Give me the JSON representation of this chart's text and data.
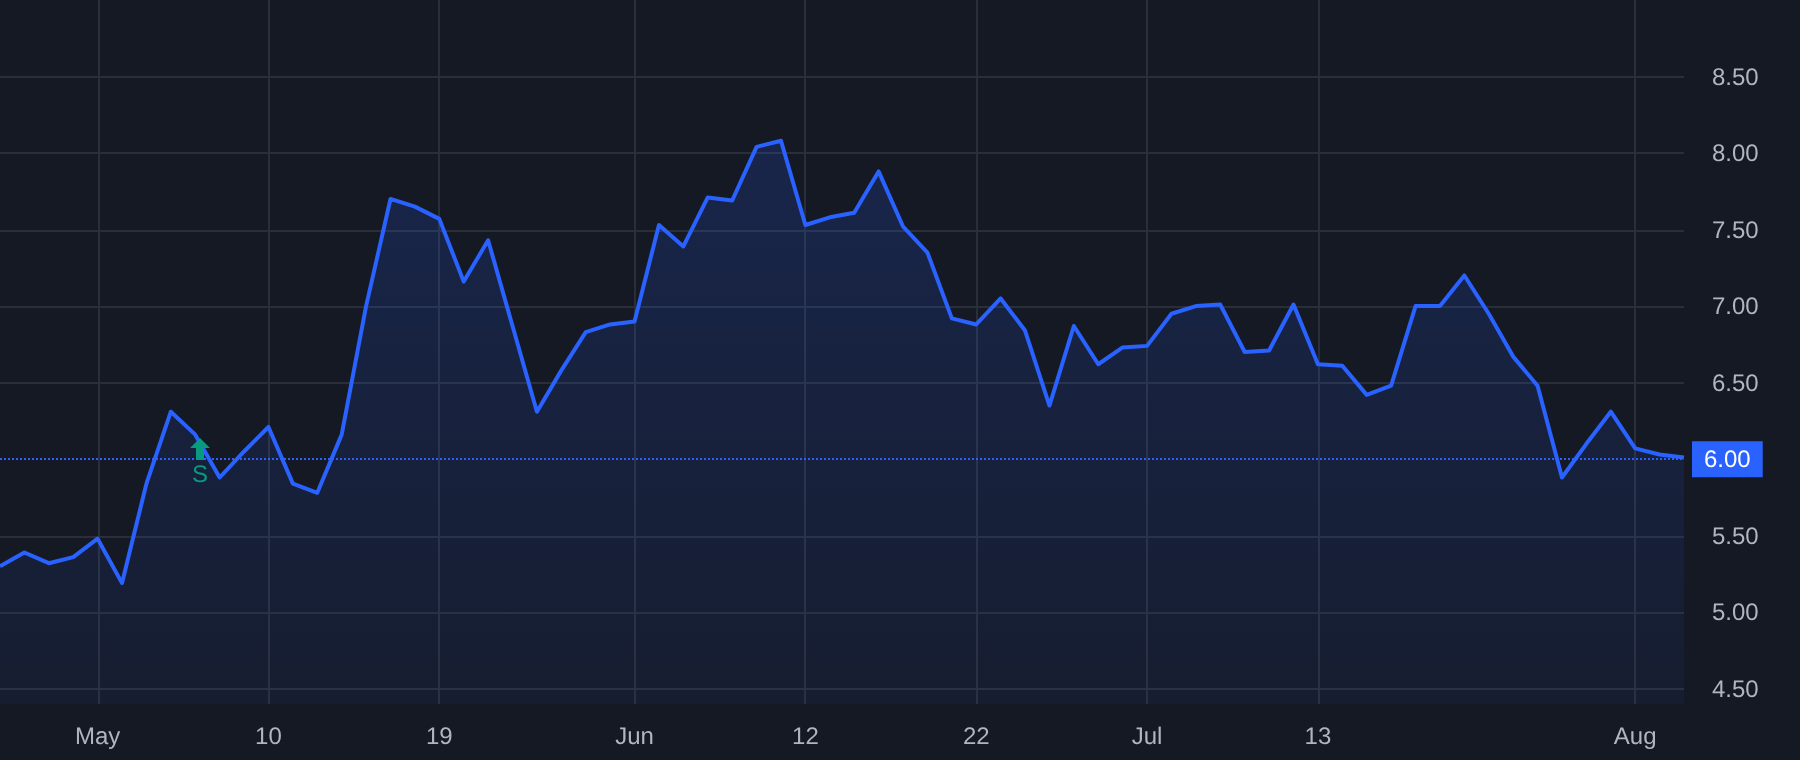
{
  "chart_data": {
    "type": "area",
    "categories": [
      null,
      null,
      null,
      null,
      "May",
      null,
      null,
      null,
      null,
      null,
      null,
      "10",
      null,
      null,
      null,
      null,
      null,
      null,
      "19",
      null,
      null,
      null,
      null,
      null,
      null,
      null,
      "Jun",
      null,
      null,
      null,
      null,
      null,
      null,
      "12",
      null,
      null,
      null,
      null,
      null,
      null,
      "22",
      null,
      null,
      null,
      null,
      null,
      null,
      "Jul",
      null,
      null,
      null,
      null,
      null,
      null,
      "13",
      null,
      null,
      null,
      null,
      null,
      null,
      null,
      null,
      null,
      null,
      null,
      null,
      "Aug",
      null,
      null
    ],
    "series": [
      {
        "color": "#2962ff",
        "values": [
          5.3,
          5.39,
          5.32,
          5.36,
          5.48,
          5.19,
          5.84,
          6.31,
          6.16,
          5.88,
          6.05,
          6.21,
          5.84,
          5.78,
          6.16,
          7.0,
          7.7,
          7.65,
          7.57,
          7.16,
          7.43,
          6.87,
          6.31,
          6.58,
          6.83,
          6.88,
          6.9,
          7.53,
          7.39,
          7.71,
          7.69,
          8.04,
          8.08,
          7.53,
          7.58,
          7.61,
          7.88,
          7.52,
          7.35,
          6.92,
          6.88,
          7.05,
          6.84,
          6.35,
          6.87,
          6.62,
          6.73,
          6.74,
          6.95,
          7.0,
          7.01,
          6.7,
          6.71,
          7.01,
          6.62,
          6.61,
          6.42,
          6.48,
          7.0,
          7.0,
          7.2,
          6.95,
          6.67,
          6.48,
          5.88,
          6.1,
          6.31,
          6.07,
          6.03,
          6.01
        ]
      }
    ],
    "ylim": [
      4.4,
      9.0
    ],
    "yticks": [
      {
        "value": 4.5,
        "label": "4.50"
      },
      {
        "value": 5,
        "label": "5.00"
      },
      {
        "value": 5.5,
        "label": "5.50"
      },
      {
        "value": 6.5,
        "label": "6.50"
      },
      {
        "value": 7,
        "label": "7.00"
      },
      {
        "value": 7.5,
        "label": "7.50"
      },
      {
        "value": 8,
        "label": "8.00"
      },
      {
        "value": 8.5,
        "label": "8.50"
      }
    ],
    "ref_lines": [
      {
        "axis": "y",
        "value": 6.0,
        "label": "6.00",
        "color": "#2962ff",
        "line_style": "dotted"
      }
    ],
    "annotations": [
      "S"
    ],
    "grid": true,
    "marker": "none",
    "line_style": "solid"
  }
}
